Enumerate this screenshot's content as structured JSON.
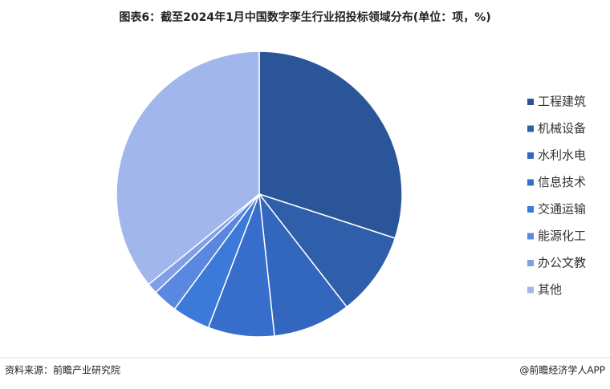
{
  "chart_data": {
    "type": "pie",
    "title": "图表6：截至2024年1月中国数字孪生行业招投标领域分布(单位：项，%)",
    "categories": [
      "工程建筑",
      "机械设备",
      "水利水电",
      "信息技术",
      "交通运输",
      "能源化工",
      "办公文教",
      "其他"
    ],
    "values": [
      30,
      9.5,
      8.8,
      7.5,
      4.3,
      2.8,
      1.2,
      35.9
    ],
    "colors": [
      "#2a5699",
      "#2f5fab",
      "#3366bd",
      "#386ecb",
      "#3c7ad9",
      "#5a88e0",
      "#7f9fe6",
      "#a1b7ec"
    ],
    "source": "资料来源：前瞻产业研究院",
    "credit": "@前瞻经济学人APP"
  }
}
